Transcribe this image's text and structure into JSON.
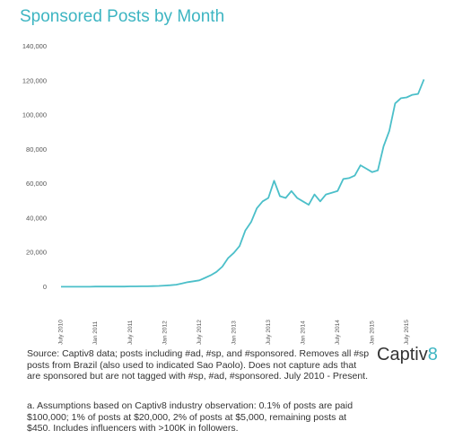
{
  "chart_data": {
    "type": "line",
    "title": "Sponsored Posts by Month",
    "categories": [
      "July 2010",
      null,
      null,
      null,
      null,
      null,
      "Jan 2011",
      null,
      null,
      null,
      null,
      null,
      "July 2011",
      null,
      null,
      null,
      null,
      null,
      "Jan 2012",
      null,
      null,
      null,
      null,
      null,
      "July 2012",
      null,
      null,
      null,
      null,
      null,
      "Jan 2013",
      null,
      null,
      null,
      null,
      null,
      "July 2013",
      null,
      null,
      null,
      null,
      null,
      "Jan 2014",
      null,
      null,
      null,
      null,
      null,
      "July 2014",
      null,
      null,
      null,
      null,
      null,
      "Jan 2015",
      null,
      null,
      null,
      null,
      null,
      "July 2015",
      null,
      null,
      null
    ],
    "values": [
      300,
      300,
      300,
      300,
      300,
      300,
      400,
      400,
      400,
      400,
      400,
      400,
      500,
      500,
      600,
      600,
      700,
      800,
      1000,
      1200,
      1500,
      2200,
      3000,
      3500,
      4000,
      5500,
      7000,
      9000,
      12000,
      17000,
      20000,
      24000,
      33000,
      38000,
      46000,
      50000,
      52000,
      62000,
      53000,
      52000,
      56000,
      52000,
      50000,
      48000,
      54000,
      50000,
      54000,
      55000,
      56000,
      63000,
      63500,
      65000,
      71000,
      69000,
      67000,
      68000,
      82000,
      91000,
      107000,
      110000,
      110500,
      112000,
      112500,
      121000
    ],
    "color": "#4bbfc9",
    "ylim": [
      0,
      140000
    ],
    "yticks": [
      0,
      {
        "value": 20000,
        "label": "20,000"
      },
      {
        "value": 40000,
        "label": "40,000"
      },
      {
        "value": 60000,
        "label": "60,000"
      },
      {
        "value": 80000,
        "label": "80,000"
      },
      {
        "value": 100000,
        "label": "100,000"
      },
      {
        "value": 120000,
        "label": "120,000"
      },
      {
        "value": 140000,
        "label": "140,000"
      }
    ],
    "grid": false,
    "source": "Source: Captiv8 data; posts including #ad, #sp, and #sponsored. Removes all #sp posts from Brazil (also used to indicated Sao Paolo). Does not capture ads that are sponsored but are not tagged with #sp, #ad, #sponsored. July 2010 - Present.",
    "footnote": "a. Assumptions based on Captiv8 industry observation: 0.1% of posts are paid $100,000; 1% of posts at $20,000, 2% of posts at $5,000, remaining posts at $450. Includes influencers with >100K in followers.",
    "logo": "Captiv",
    "logo_accent": "8"
  }
}
